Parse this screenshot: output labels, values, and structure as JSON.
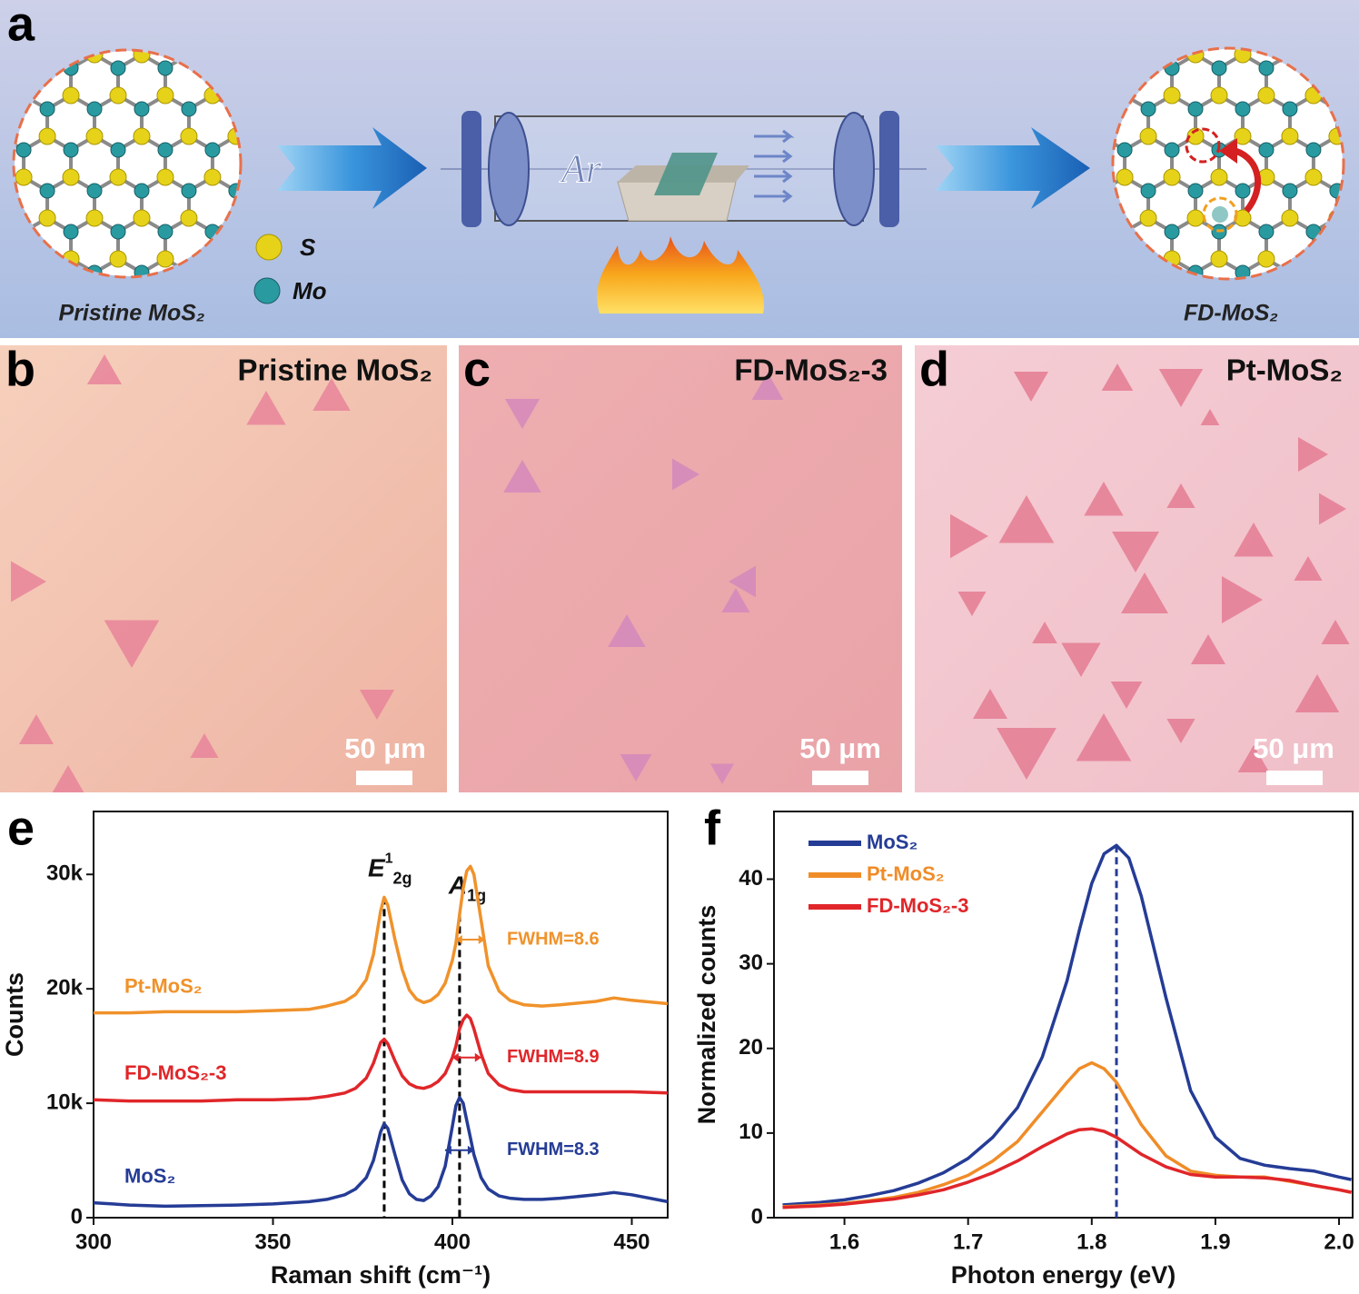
{
  "panel_a": {
    "letter": "a",
    "legend_s": "S",
    "legend_mo": "Mo",
    "gas": "Ar",
    "left_caption": "Pristine MoS₂",
    "right_caption": "FD-MoS₂"
  },
  "micrographs": [
    {
      "letter": "b",
      "title": "Pristine MoS₂",
      "scale_bar": "50 μm"
    },
    {
      "letter": "c",
      "title": "FD-MoS₂-3",
      "scale_bar": "50 μm"
    },
    {
      "letter": "d",
      "title": "Pt-MoS₂",
      "scale_bar": "50 μm"
    }
  ],
  "chart_data": [
    {
      "type": "line",
      "label": "e",
      "xlabel": "Raman shift (cm⁻¹)",
      "ylabel": "Counts",
      "x": [
        300,
        310,
        320,
        330,
        340,
        350,
        360,
        365,
        370,
        373,
        376,
        378,
        380,
        381,
        382,
        384,
        386,
        388,
        390,
        392,
        394,
        396,
        398,
        400,
        401,
        402,
        403,
        404,
        405,
        406,
        408,
        410,
        413,
        416,
        420,
        425,
        430,
        440,
        445,
        450,
        460
      ],
      "xlim": [
        300,
        460
      ],
      "ylim": [
        0,
        35500
      ],
      "xticks": [
        300,
        350,
        400,
        450
      ],
      "yticks": [
        0,
        {
          "value": 10000,
          "label": "10k"
        },
        {
          "value": 20000,
          "label": "20k"
        },
        {
          "value": 30000,
          "label": "30k"
        }
      ],
      "series": [
        {
          "name": "Pt-MoS₂",
          "color": "#f0922b",
          "annotation": "FWHM=8.6",
          "values": [
            17900,
            17900,
            18000,
            18000,
            18000,
            18100,
            18200,
            18500,
            18900,
            19500,
            20800,
            23000,
            26800,
            28000,
            27300,
            24300,
            21700,
            19900,
            19100,
            18800,
            19000,
            19500,
            20500,
            22500,
            24000,
            26500,
            28800,
            30300,
            30700,
            30000,
            26000,
            22000,
            19800,
            19000,
            18600,
            18500,
            18600,
            18900,
            19200,
            19000,
            18700
          ]
        },
        {
          "name": "FD-MoS₂-3",
          "color": "#e0262a",
          "annotation": "FWHM=8.9",
          "values": [
            10300,
            10200,
            10200,
            10200,
            10300,
            10300,
            10400,
            10600,
            10900,
            11300,
            12200,
            13500,
            15300,
            15600,
            15200,
            13700,
            12400,
            11700,
            11400,
            11300,
            11500,
            11900,
            12600,
            14000,
            15000,
            16500,
            17300,
            17700,
            17400,
            16500,
            14300,
            12600,
            11600,
            11200,
            11000,
            11000,
            11000,
            11000,
            11000,
            11000,
            10900
          ]
        },
        {
          "name": "MoS₂",
          "color": "#253c96",
          "annotation": "FWHM=8.3",
          "values": [
            1300,
            1100,
            1000,
            1050,
            1100,
            1200,
            1400,
            1600,
            2000,
            2500,
            3500,
            5000,
            7500,
            8200,
            7800,
            5500,
            3300,
            2100,
            1600,
            1500,
            1900,
            2700,
            4500,
            8000,
            9800,
            10500,
            10000,
            8500,
            7000,
            5500,
            3500,
            2500,
            1900,
            1700,
            1600,
            1600,
            1700,
            2000,
            2200,
            2000,
            1400
          ]
        }
      ],
      "vlines": [
        381,
        402
      ],
      "vline_color": "#000000",
      "peak_labels": [
        {
          "base": "E",
          "sup": "1",
          "sub": "2g"
        },
        {
          "base": "A",
          "sub": "1g"
        }
      ]
    },
    {
      "type": "line",
      "label": "f",
      "xlabel": "Photon energy (eV)",
      "ylabel": "Normalized counts",
      "x": [
        1.55,
        1.58,
        1.6,
        1.62,
        1.64,
        1.66,
        1.68,
        1.7,
        1.72,
        1.74,
        1.76,
        1.78,
        1.79,
        1.8,
        1.81,
        1.82,
        1.83,
        1.84,
        1.86,
        1.88,
        1.9,
        1.92,
        1.94,
        1.96,
        1.98,
        2.0,
        2.01
      ],
      "xlim": [
        1.543,
        2.011
      ],
      "ylim": [
        0,
        48
      ],
      "xticks": [
        1.6,
        1.7,
        1.8,
        1.9,
        {
          "value": 2,
          "label": "2.0"
        }
      ],
      "yticks": [
        0,
        10,
        20,
        30,
        40
      ],
      "legend": "upper left",
      "series": [
        {
          "name": "MoS₂",
          "color": "#253c96",
          "values": [
            1.5,
            1.8,
            2.1,
            2.6,
            3.2,
            4.1,
            5.3,
            7,
            9.5,
            13,
            19,
            28,
            34,
            39.5,
            43,
            44,
            42.5,
            38,
            26,
            15,
            9.5,
            7,
            6.2,
            5.8,
            5.5,
            4.8,
            4.5
          ]
        },
        {
          "name": "Pt-MoS₂",
          "color": "#f08c28",
          "values": [
            1.3,
            1.5,
            1.7,
            2,
            2.4,
            3,
            3.9,
            5,
            6.7,
            9,
            12.5,
            16,
            17.6,
            18.3,
            17.6,
            16,
            13.5,
            11,
            7.3,
            5.5,
            5,
            4.8,
            4.8,
            4.3,
            3.8,
            3.3,
            3
          ]
        },
        {
          "name": "FD-MoS₂-3",
          "color": "#e0262a",
          "values": [
            1.2,
            1.4,
            1.6,
            1.9,
            2.2,
            2.7,
            3.3,
            4.2,
            5.3,
            6.7,
            8.4,
            9.9,
            10.4,
            10.5,
            10.2,
            9.5,
            8.5,
            7.5,
            6,
            5.1,
            4.8,
            4.8,
            4.7,
            4.4,
            3.8,
            3.3,
            3
          ]
        }
      ],
      "vlines": [
        1.82
      ],
      "vline_color": "#253c96"
    }
  ]
}
